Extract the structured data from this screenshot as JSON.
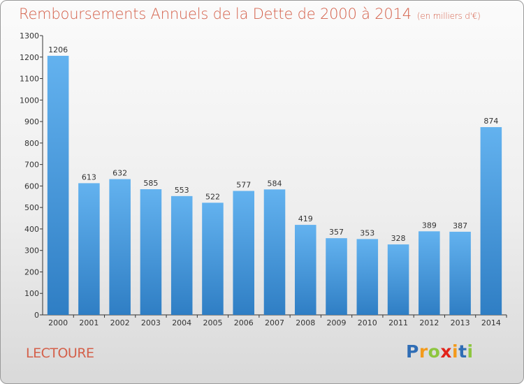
{
  "title": "Remboursements Annuels de la Dette de 2000 à 2014",
  "unit": "(en milliers d'€)",
  "city": "LECTOURE",
  "logo": {
    "letters": [
      "P",
      "r",
      "o",
      "x",
      "i",
      "t",
      "i"
    ],
    "colors": [
      "#2f6db5",
      "#f39a1b",
      "#8dc63f",
      "#e2231a",
      "#f39a1b",
      "#2f6db5",
      "#8dc63f"
    ]
  },
  "colors": {
    "bar_top": "#63b2ef",
    "bar_bottom": "#2f7ec4",
    "title": "#d4604a",
    "axis": "#333333"
  },
  "chart_data": {
    "type": "bar",
    "title": "Remboursements Annuels de la Dette de 2000 à 2014",
    "categories": [
      "2000",
      "2001",
      "2002",
      "2003",
      "2004",
      "2005",
      "2006",
      "2007",
      "2008",
      "2009",
      "2010",
      "2011",
      "2012",
      "2013",
      "2014"
    ],
    "values": [
      1206,
      613,
      632,
      585,
      553,
      522,
      577,
      584,
      419,
      357,
      353,
      328,
      389,
      387,
      874
    ],
    "ylim": [
      0,
      1300
    ],
    "yticks": [
      0,
      100,
      200,
      300,
      400,
      500,
      600,
      700,
      800,
      900,
      1000,
      1100,
      1200,
      1300
    ],
    "grid": false
  }
}
